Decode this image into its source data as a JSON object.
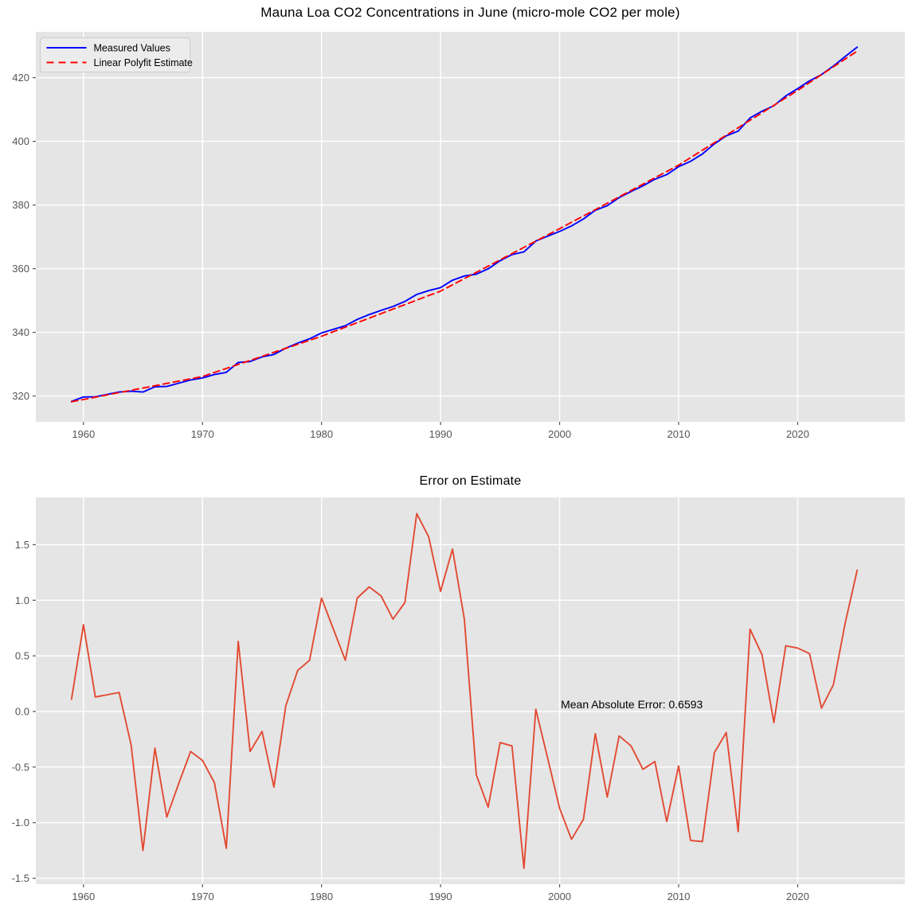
{
  "figure": {
    "background_color": "#ffffff",
    "panel_color": "#e5e5e5",
    "grid_color": "#ffffff",
    "tick_color": "#555555",
    "tick_label_color": "#555555",
    "legend_face_color": "#ececec",
    "legend_edge_color": "#cccccc",
    "measured_color": "#0000ff",
    "estimate_color": "#ff0000",
    "error_color": "#e24a33"
  },
  "chart_data": [
    {
      "id": "co2",
      "type": "line",
      "title": "Mauna Loa CO2 Concentrations in June (micro-mole CO2 per mole)",
      "xlim": [
        1956,
        2029
      ],
      "ylim": [
        311.9,
        434.4
      ],
      "xticks": [
        1960,
        1970,
        1980,
        1990,
        2000,
        2010,
        2020
      ],
      "xtick_labels": [
        "1960",
        "1970",
        "1980",
        "1990",
        "2000",
        "2010",
        "2020"
      ],
      "yticks": [
        320,
        340,
        360,
        380,
        400,
        420
      ],
      "ytick_labels": [
        "320",
        "340",
        "360",
        "380",
        "400",
        "420"
      ],
      "grid": true,
      "legend": {
        "position": "upper-left",
        "entries": [
          "Measured Values",
          "Linear Polyfit Estimate"
        ]
      },
      "x": [
        1959,
        1960,
        1961,
        1962,
        1963,
        1964,
        1965,
        1966,
        1967,
        1968,
        1969,
        1970,
        1971,
        1972,
        1973,
        1974,
        1975,
        1976,
        1977,
        1978,
        1979,
        1980,
        1981,
        1982,
        1983,
        1984,
        1985,
        1986,
        1987,
        1988,
        1989,
        1990,
        1991,
        1992,
        1993,
        1994,
        1995,
        1996,
        1997,
        1998,
        1999,
        2000,
        2001,
        2002,
        2003,
        2004,
        2005,
        2006,
        2007,
        2008,
        2009,
        2010,
        2011,
        2012,
        2013,
        2014,
        2015,
        2016,
        2017,
        2018,
        2019,
        2020,
        2021,
        2022,
        2023,
        2024,
        2025
      ],
      "series": [
        {
          "name": "Measured Values",
          "color": "#0000ff",
          "style": "solid",
          "values": [
            318.3,
            319.69,
            319.76,
            320.5,
            321.24,
            321.49,
            321.26,
            322.9,
            323.0,
            324.02,
            325.03,
            325.68,
            326.75,
            327.42,
            330.55,
            330.82,
            332.27,
            333.04,
            335.03,
            336.62,
            337.97,
            339.8,
            340.94,
            342.08,
            344.05,
            345.57,
            346.91,
            348.12,
            349.69,
            351.9,
            353.11,
            354.04,
            356.38,
            357.71,
            358.27,
            359.94,
            362.49,
            364.42,
            365.28,
            368.67,
            370.19,
            371.7,
            373.42,
            375.59,
            378.36,
            379.78,
            382.33,
            384.24,
            386.02,
            388.09,
            389.54,
            392.04,
            393.72,
            396.06,
            399.2,
            401.73,
            403.19,
            407.36,
            409.48,
            411.21,
            414.25,
            416.58,
            419.0,
            420.97,
            423.65,
            426.67,
            429.61
          ]
        },
        {
          "name": "Linear Polyfit Estimate",
          "color": "#ff0000",
          "style": "dashed",
          "values": [
            318.19,
            318.91,
            319.63,
            320.35,
            321.07,
            321.79,
            322.51,
            323.23,
            323.95,
            324.67,
            325.39,
            326.12,
            327.39,
            328.65,
            329.92,
            331.18,
            332.45,
            333.72,
            334.98,
            336.25,
            337.51,
            338.78,
            340.2,
            341.62,
            343.03,
            344.45,
            345.87,
            347.29,
            348.71,
            350.12,
            351.54,
            352.96,
            354.92,
            356.88,
            358.84,
            360.8,
            362.77,
            364.73,
            366.69,
            368.65,
            370.61,
            372.57,
            374.57,
            376.56,
            378.56,
            380.55,
            382.55,
            384.55,
            386.54,
            388.54,
            390.53,
            392.53,
            394.88,
            397.23,
            399.57,
            401.92,
            404.27,
            406.62,
            408.97,
            411.31,
            413.66,
            416.01,
            418.48,
            420.94,
            423.41,
            425.87,
            428.34
          ]
        }
      ]
    },
    {
      "id": "error",
      "type": "line",
      "title": "Error on Estimate",
      "xlim": [
        1956,
        2029
      ],
      "ylim": [
        -1.553,
        1.925
      ],
      "xticks": [
        1960,
        1970,
        1980,
        1990,
        2000,
        2010,
        2020
      ],
      "xtick_labels": [
        "1960",
        "1970",
        "1980",
        "1990",
        "2000",
        "2010",
        "2020"
      ],
      "yticks": [
        -1.5,
        -1.0,
        -0.5,
        0.0,
        0.5,
        1.0,
        1.5
      ],
      "ytick_labels": [
        "-1.5",
        "-1.0",
        "-0.5",
        "0.0",
        "0.5",
        "1.0",
        "1.5"
      ],
      "grid": true,
      "annotation": {
        "text": "Mean Absolute Error: 0.6593",
        "x": 2000.1,
        "y": 0.028
      },
      "x": [
        1959,
        1960,
        1961,
        1962,
        1963,
        1964,
        1965,
        1966,
        1967,
        1968,
        1969,
        1970,
        1971,
        1972,
        1973,
        1974,
        1975,
        1976,
        1977,
        1978,
        1979,
        1980,
        1981,
        1982,
        1983,
        1984,
        1985,
        1986,
        1987,
        1988,
        1989,
        1990,
        1991,
        1992,
        1993,
        1994,
        1995,
        1996,
        1997,
        1998,
        1999,
        2000,
        2001,
        2002,
        2003,
        2004,
        2005,
        2006,
        2007,
        2008,
        2009,
        2010,
        2011,
        2012,
        2013,
        2014,
        2015,
        2016,
        2017,
        2018,
        2019,
        2020,
        2021,
        2022,
        2023,
        2024,
        2025
      ],
      "series": [
        {
          "name": "Error",
          "color": "#e24a33",
          "style": "solid",
          "values": [
            0.11,
            0.78,
            0.13,
            0.15,
            0.17,
            -0.3,
            -1.25,
            -0.33,
            -0.95,
            -0.65,
            -0.36,
            -0.44,
            -0.64,
            -1.23,
            0.63,
            -0.36,
            -0.18,
            -0.68,
            0.05,
            0.37,
            0.46,
            1.02,
            0.74,
            0.46,
            1.02,
            1.12,
            1.04,
            0.83,
            0.98,
            1.78,
            1.57,
            1.08,
            1.46,
            0.83,
            -0.57,
            -0.86,
            -0.28,
            -0.31,
            -1.41,
            0.02,
            -0.42,
            -0.87,
            -1.15,
            -0.97,
            -0.2,
            -0.77,
            -0.22,
            -0.31,
            -0.52,
            -0.45,
            -0.99,
            -0.49,
            -1.16,
            -1.17,
            -0.37,
            -0.19,
            -1.08,
            0.74,
            0.51,
            -0.1,
            0.59,
            0.57,
            0.52,
            0.03,
            0.24,
            0.8,
            1.27
          ]
        }
      ]
    }
  ]
}
